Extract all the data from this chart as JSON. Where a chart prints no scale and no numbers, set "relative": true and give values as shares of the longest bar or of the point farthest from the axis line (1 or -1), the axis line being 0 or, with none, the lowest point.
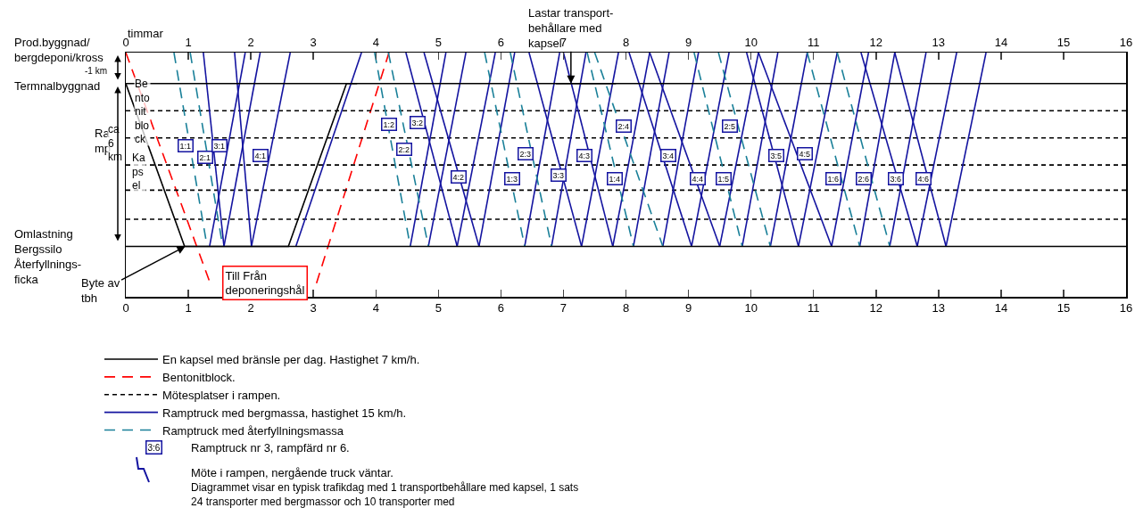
{
  "chart_data": {
    "type": "line",
    "relative": true,
    "x2label": "timmar",
    "xlim": [
      0,
      16
    ],
    "xticks": [
      0,
      1,
      2,
      3,
      4,
      5,
      6,
      7,
      8,
      9,
      10,
      11,
      12,
      13,
      14,
      15,
      16
    ],
    "x2lim": [
      0,
      16
    ],
    "x2ticks": [
      0,
      1,
      2,
      3,
      4,
      5,
      6,
      7,
      8,
      9,
      10,
      11,
      12,
      13,
      14,
      15,
      16
    ],
    "grid": false,
    "legend": "bottom left",
    "series": [
      {
        "name": "En kapsel med bränsle per dag. Hastighet 7 km/h.",
        "color": "#000000",
        "line_style": "solid",
        "x": [
          0,
          0.94,
          2.6,
          3.53,
          3.7,
          null,
          6.88,
          7.84
        ],
        "values": [
          0.84,
          0,
          0,
          0.84,
          0.84,
          null,
          0.84,
          0.84
        ]
      },
      {
        "name": "Bentonitblock.",
        "color": "#ff0000",
        "line_style": "dashed",
        "x": [
          0,
          1.35,
          null,
          3.05,
          4.21
        ],
        "values": [
          1,
          -0.19,
          null,
          -0.19,
          1
        ]
      },
      {
        "name": "Mötesplatser i rampen.",
        "color": "#000000",
        "line_style": "dotted",
        "x": [
          0,
          16
        ],
        "values": [
          0.7,
          0.7
        ]
      },
      {
        "color": "#000000",
        "line_style": "dotted",
        "x": [
          0,
          16
        ],
        "values": [
          0.56,
          0.56
        ]
      },
      {
        "color": "#000000",
        "line_style": "dotted",
        "x": [
          0,
          16
        ],
        "values": [
          0.42,
          0.42
        ]
      },
      {
        "color": "#000000",
        "line_style": "dotted",
        "x": [
          0,
          16
        ],
        "values": [
          0.29,
          0.29
        ]
      },
      {
        "color": "#000000",
        "line_style": "dotted",
        "x": [
          0,
          16
        ],
        "values": [
          0.14,
          0.14
        ]
      },
      {
        "name": "Ramptruck med bergmassa, hastighet 15 km/h.",
        "color": "#1414a0",
        "line_style": "solid",
        "x": [
          1.24,
          1.57,
          null,
          1.74,
          2.01,
          null,
          4.48,
          5.3,
          null,
          4.77,
          5.65,
          null,
          6.45,
          7.29,
          null,
          7.0,
          7.79,
          null,
          8.05,
          9.05,
          null,
          8.38,
          9.5,
          null,
          9.93,
          10.76,
          null,
          10.12,
          11.29,
          null,
          11.76,
          12.66,
          null,
          12.3,
          13.12,
          null,
          1.34,
          1.91,
          null,
          1.57,
          2.15,
          null,
          2.01,
          2.63,
          null,
          2.72,
          3.77,
          null,
          4.55,
          5.12,
          null,
          4.84,
          5.44,
          null,
          5.3,
          5.91,
          null,
          5.65,
          6.22,
          null,
          6.38,
          6.94,
          null,
          6.81,
          7.36,
          null,
          7.29,
          7.88,
          null,
          7.79,
          8.38,
          null,
          8.12,
          8.69,
          null,
          8.59,
          9.16,
          null,
          9.05,
          9.65,
          null,
          9.5,
          10.12,
          null,
          9.86,
          10.43,
          null,
          10.31,
          10.9,
          null,
          10.76,
          11.38,
          null,
          11.29,
          11.88,
          null,
          11.74,
          12.3,
          null,
          12.22,
          12.8,
          null,
          12.66,
          13.29,
          null,
          13.12,
          13.76
        ],
        "values": [
          1,
          0,
          null,
          1,
          0,
          null,
          1,
          0,
          null,
          1,
          0,
          null,
          1,
          0,
          null,
          1,
          0,
          null,
          1,
          0,
          null,
          1,
          0,
          null,
          1,
          0,
          null,
          1,
          0,
          null,
          1,
          0,
          null,
          1,
          0,
          null,
          0,
          1,
          null,
          0,
          1,
          null,
          0,
          1,
          null,
          0,
          1,
          null,
          0,
          1,
          null,
          0,
          1,
          null,
          0,
          1,
          null,
          0,
          1,
          null,
          0,
          1,
          null,
          0,
          1,
          null,
          0,
          1,
          null,
          0,
          1,
          null,
          0,
          1,
          null,
          0,
          1,
          null,
          0,
          1,
          null,
          0,
          1,
          null,
          0,
          1,
          null,
          0,
          1,
          null,
          0,
          1,
          null,
          0,
          1,
          null,
          0,
          1,
          null,
          0,
          1,
          null,
          0,
          1,
          null,
          0,
          1
        ]
      },
      {
        "name": "Ramptruck med återfyllningsmassa",
        "color": "#1a8099",
        "line_style": "dashed",
        "x": [
          0.77,
          1.3,
          null,
          1.03,
          1.55,
          null,
          3.98,
          4.55,
          null,
          4.2,
          4.84,
          null,
          5.74,
          6.38,
          null,
          6.15,
          6.81,
          null,
          7.38,
          8.12,
          null,
          7.5,
          8.59,
          null,
          9.09,
          9.86,
          null,
          9.48,
          10.31,
          null,
          10.9,
          11.74,
          null,
          11.38,
          12.22
        ],
        "values": [
          1,
          0,
          null,
          1,
          0,
          null,
          1,
          0,
          null,
          1,
          0,
          null,
          1,
          0,
          null,
          1,
          0,
          null,
          1,
          0,
          null,
          1,
          0,
          null,
          1,
          0,
          null,
          1,
          0,
          null,
          1,
          0,
          null,
          1,
          0
        ]
      }
    ],
    "ref_lines": [
      {
        "axis": "y",
        "value": 0.84,
        "color": "#000000",
        "line_style": "solid"
      },
      {
        "axis": "y",
        "value": 0,
        "color": "#000000",
        "line_style": "solid"
      }
    ],
    "annotations": [
      "Prod.byggnad/\nbergdeponi/kross",
      "-1 km",
      "Termnalbyggnad",
      "Ra\nmp",
      "ca\n6\nkm",
      "Omlastning\nBergssilo\nÅterfyllnings-\nficka",
      "3:6",
      "Ramptruck nr 3, rampfärd nr 6.",
      "Möte i rampen, nergående truck väntar.",
      "Diagrammet visar en typisk trafikdag med 1 transportbehållare med kapsel, 1 sats\n24 transporter med bergmassor och 10 transporter med",
      "Till Från\ndeponeringshål",
      "Be\nnto\nnit\nblo\nck",
      "Ka\nps\nel",
      {
        "text": "Lastar transport-\nbehållare med\nkapsel",
        "x": 7.12,
        "y": 0.84
      },
      {
        "text": "Byte av\ntbh",
        "x": 0.95,
        "y": 0
      },
      {
        "text": "1:1",
        "x": 0.96,
        "y": 0.52
      },
      {
        "text": "2:1",
        "x": 1.27,
        "y": 0.46
      },
      {
        "text": "3:1",
        "x": 1.5,
        "y": 0.52
      },
      {
        "text": "4:1",
        "x": 2.16,
        "y": 0.47
      },
      {
        "text": "1:2",
        "x": 4.21,
        "y": 0.63
      },
      {
        "text": "3:2",
        "x": 4.67,
        "y": 0.64
      },
      {
        "text": "2:2",
        "x": 4.45,
        "y": 0.5
      },
      {
        "text": "4:2",
        "x": 5.32,
        "y": 0.36
      },
      {
        "text": "1:3",
        "x": 6.18,
        "y": 0.35
      },
      {
        "text": "2:3",
        "x": 6.39,
        "y": 0.48
      },
      {
        "text": "3:3",
        "x": 6.92,
        "y": 0.37
      },
      {
        "text": "4:3",
        "x": 7.34,
        "y": 0.47
      },
      {
        "text": "1:4",
        "x": 7.82,
        "y": 0.35
      },
      {
        "text": "2:4",
        "x": 7.96,
        "y": 0.62
      },
      {
        "text": "3:4",
        "x": 8.68,
        "y": 0.47
      },
      {
        "text": "4:4",
        "x": 9.15,
        "y": 0.35
      },
      {
        "text": "1:5",
        "x": 9.56,
        "y": 0.35
      },
      {
        "text": "2:5",
        "x": 9.66,
        "y": 0.62
      },
      {
        "text": "3:5",
        "x": 10.41,
        "y": 0.47
      },
      {
        "text": "4:5",
        "x": 10.86,
        "y": 0.48
      },
      {
        "text": "1:6",
        "x": 11.32,
        "y": 0.35
      },
      {
        "text": "2:6",
        "x": 11.8,
        "y": 0.35
      },
      {
        "text": "3:6",
        "x": 12.32,
        "y": 0.35
      },
      {
        "text": "4:6",
        "x": 12.76,
        "y": 0.35
      }
    ]
  }
}
